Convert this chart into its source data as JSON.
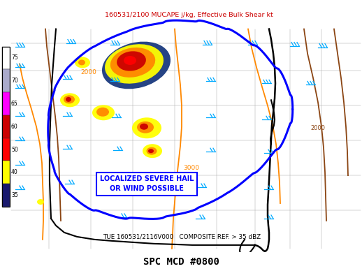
{
  "title_top": "160531/2100 MUCAPE j/kg, Effective Bulk Shear kt",
  "title_bottom": "SPC MCD #0800",
  "subtitle": "TUE 160531/2116V000   COMPOSITE REF. > 35 dBZ",
  "title_top_color": "#cc0000",
  "title_bottom_color": "#000000",
  "subtitle_color": "#000000",
  "bg_color": "#ffffff",
  "figsize": [
    5.18,
    3.88
  ],
  "dpi": 100,
  "colorbar_segments": [
    {
      "color": "#ffffff",
      "label": "75"
    },
    {
      "color": "#aaaacc",
      "label": "70"
    },
    {
      "color": "#ff00ff",
      "label": "65"
    },
    {
      "color": "#cc0000",
      "label": "60"
    },
    {
      "color": "#ff0000",
      "label": "50"
    },
    {
      "color": "#ffff00",
      "label": "40"
    },
    {
      "color": "#1a1a6e",
      "label": "35"
    }
  ],
  "annotation_text": "LOCALIZED SEVERE HAIL\nOR WIND POSSIBLE",
  "annotation_color": "#0000ff",
  "annotation_bg": "#ffffff",
  "brown_color": "#8B4513",
  "orange_color": "#ff8800",
  "cyan_color": "#00aaff",
  "blue_boundary": "#0000ff",
  "state_line_color": "#aaaaaa",
  "coast_color": "#000000"
}
